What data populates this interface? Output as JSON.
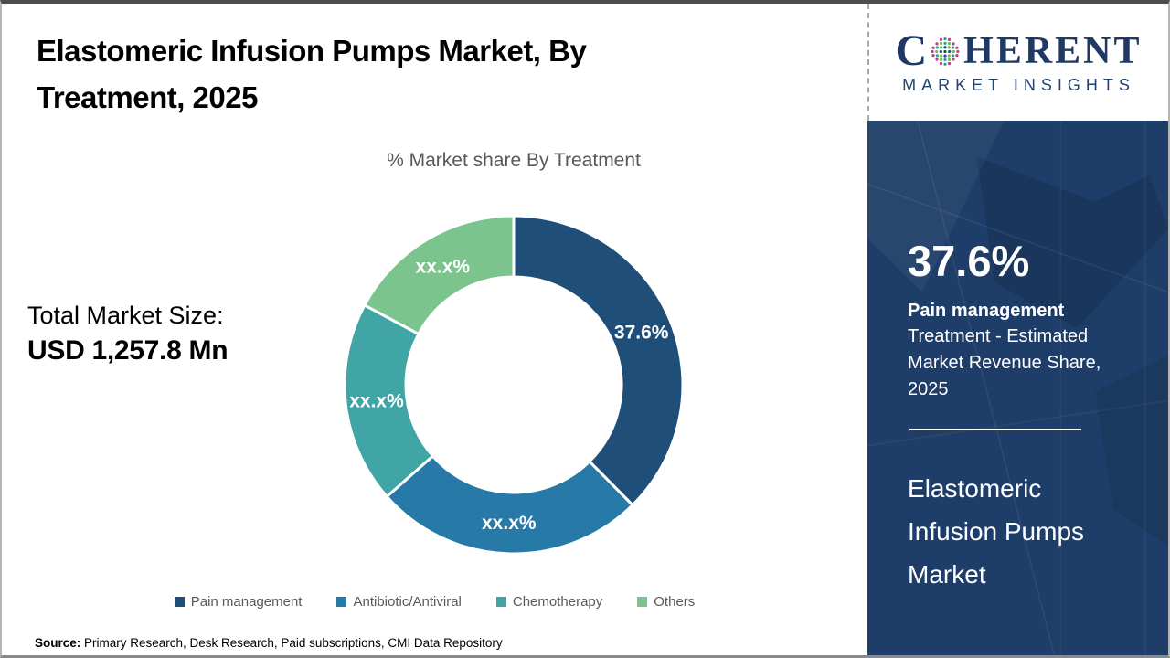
{
  "header": {
    "title": "Elastomeric Infusion Pumps Market, By\nTreatment, 2025"
  },
  "brand": {
    "name_prefix": "C",
    "name_suffix": "HERENT",
    "tagline": "MARKET INSIGHTS"
  },
  "total_market": {
    "label": "Total Market Size:",
    "value": "USD 1,257.8 Mn"
  },
  "chart_data": {
    "type": "pie",
    "subtype": "donut",
    "title": "% Market share By Treatment",
    "start_angle_deg": 0,
    "direction": "clockwise",
    "legend_position": "bottom",
    "slices": [
      {
        "label": "Pain management",
        "value_pct": 37.6,
        "display_label": "37.6%",
        "color": "#1F4E79"
      },
      {
        "label": "Antibiotic/Antiviral",
        "value_pct": 25.9,
        "display_label": "xx.x%",
        "color": "#2779A7"
      },
      {
        "label": "Chemotherapy",
        "value_pct": 19.3,
        "display_label": "xx.x%",
        "color": "#41A5A5"
      },
      {
        "label": "Others",
        "value_pct": 17.2,
        "display_label": "xx.x%",
        "color": "#7CC48D"
      }
    ]
  },
  "sidebar": {
    "stat_value": "37.6%",
    "stat_segment": "Pain management",
    "stat_description": "Treatment - Estimated Market Revenue Share, 2025",
    "report_title": "Elastomeric Infusion Pumps Market",
    "background_color": "#1E3D68"
  },
  "source": {
    "prefix": "Source:",
    "text": " Primary Research, Desk Research, Paid subscriptions, CMI Data Repository"
  }
}
